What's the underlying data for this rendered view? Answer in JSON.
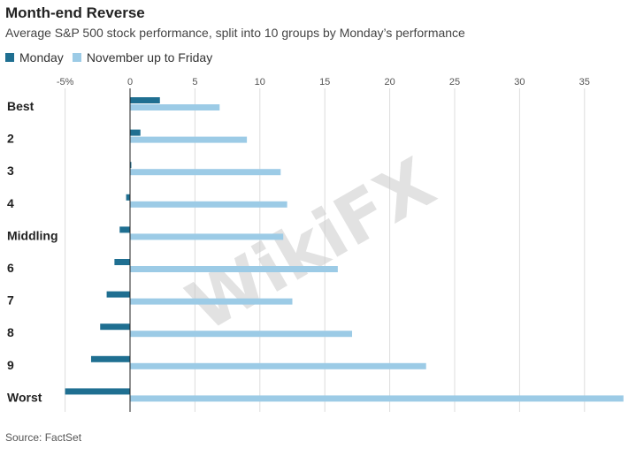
{
  "chart_data": {
    "type": "bar",
    "orientation": "horizontal",
    "title": "Month-end Reverse",
    "subtitle": "Average S&P 500 stock performance, split into 10 groups by Monday’s performance",
    "source": "Source: FactSet",
    "categories": [
      "Best",
      "2",
      "3",
      "4",
      "Middling",
      "6",
      "7",
      "8",
      "9",
      "Worst"
    ],
    "series": [
      {
        "name": "Monday",
        "color": "#1f6f91",
        "values": [
          2.3,
          0.8,
          0.1,
          -0.3,
          -0.8,
          -1.2,
          -1.8,
          -2.3,
          -3.0,
          -5.0
        ]
      },
      {
        "name": "November up to Friday",
        "color": "#9ccbe6",
        "values": [
          6.9,
          9.0,
          11.6,
          12.1,
          11.8,
          16.0,
          12.5,
          17.1,
          22.8,
          38.0
        ]
      }
    ],
    "x_ticks": [
      "-5%",
      "0",
      "5",
      "10",
      "15",
      "20",
      "25",
      "30",
      "35"
    ],
    "x_tick_values": [
      -5,
      0,
      5,
      10,
      15,
      20,
      25,
      30,
      35
    ],
    "xlim": [
      -5,
      38
    ],
    "grid": true,
    "legend": "top-left"
  },
  "watermark_text": "WikiFX"
}
